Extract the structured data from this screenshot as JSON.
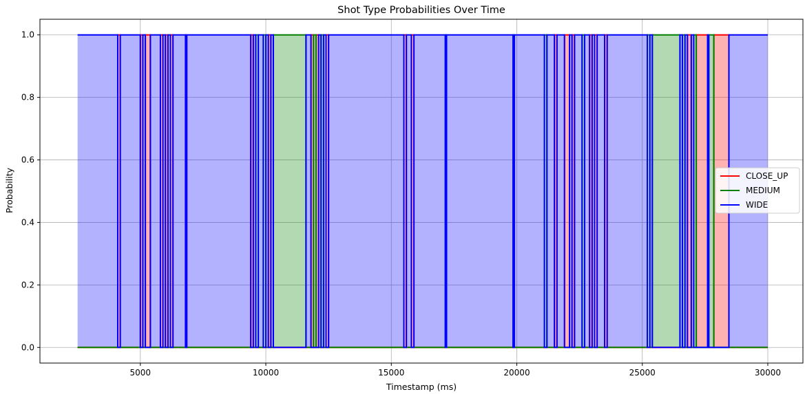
{
  "chart_data": {
    "type": "area",
    "title": "Shot Type Probabilities Over Time",
    "xlabel": "Timestamp (ms)",
    "ylabel": "Probability",
    "xlim": [
      1000,
      31400
    ],
    "ylim": [
      -0.05,
      1.05
    ],
    "xticks": [
      5000,
      10000,
      15000,
      20000,
      25000,
      30000
    ],
    "yticks": [
      0.0,
      0.2,
      0.4,
      0.6,
      0.8,
      1.0
    ],
    "xtick_labels": [
      "5000",
      "10000",
      "15000",
      "20000",
      "25000",
      "30000"
    ],
    "ytick_labels": [
      "0.0",
      "0.2",
      "0.4",
      "0.6",
      "0.8",
      "1.0"
    ],
    "grid": true,
    "legend_position": "center-right",
    "x_start": 2500,
    "x_end": 30000,
    "series": [
      {
        "name": "CLOSE_UP",
        "color": "#ff0000"
      },
      {
        "name": "MEDIUM",
        "color": "#008000"
      },
      {
        "name": "WIDE",
        "color": "#0000ff"
      }
    ],
    "segments": [
      {
        "start": 4100,
        "end": 4200,
        "class": "CLOSE_UP"
      },
      {
        "start": 5000,
        "end": 5100,
        "class": "CLOSE_UP"
      },
      {
        "start": 5200,
        "end": 5400,
        "class": "CLOSE_UP"
      },
      {
        "start": 5800,
        "end": 5900,
        "class": "CLOSE_UP"
      },
      {
        "start": 6000,
        "end": 6100,
        "class": "CLOSE_UP"
      },
      {
        "start": 6200,
        "end": 6300,
        "class": "CLOSE_UP"
      },
      {
        "start": 6800,
        "end": 6850,
        "class": "CLOSE_UP"
      },
      {
        "start": 9400,
        "end": 9500,
        "class": "CLOSE_UP"
      },
      {
        "start": 9600,
        "end": 9700,
        "class": "MEDIUM"
      },
      {
        "start": 9900,
        "end": 10000,
        "class": "MEDIUM"
      },
      {
        "start": 10100,
        "end": 10200,
        "class": "CLOSE_UP"
      },
      {
        "start": 10300,
        "end": 11600,
        "class": "MEDIUM"
      },
      {
        "start": 11800,
        "end": 11900,
        "class": "CLOSE_UP"
      },
      {
        "start": 11900,
        "end": 12000,
        "class": "MEDIUM"
      },
      {
        "start": 12000,
        "end": 12100,
        "class": "CLOSE_UP"
      },
      {
        "start": 12200,
        "end": 12300,
        "class": "MEDIUM"
      },
      {
        "start": 12400,
        "end": 12500,
        "class": "CLOSE_UP"
      },
      {
        "start": 15500,
        "end": 15600,
        "class": "CLOSE_UP"
      },
      {
        "start": 15800,
        "end": 15900,
        "class": "CLOSE_UP"
      },
      {
        "start": 17150,
        "end": 17200,
        "class": "MEDIUM"
      },
      {
        "start": 19850,
        "end": 19900,
        "class": "MEDIUM"
      },
      {
        "start": 21100,
        "end": 21200,
        "class": "MEDIUM"
      },
      {
        "start": 21500,
        "end": 21600,
        "class": "CLOSE_UP"
      },
      {
        "start": 21900,
        "end": 22100,
        "class": "CLOSE_UP"
      },
      {
        "start": 22200,
        "end": 22300,
        "class": "CLOSE_UP"
      },
      {
        "start": 22600,
        "end": 22700,
        "class": "MEDIUM"
      },
      {
        "start": 22900,
        "end": 23000,
        "class": "CLOSE_UP"
      },
      {
        "start": 23100,
        "end": 23200,
        "class": "CLOSE_UP"
      },
      {
        "start": 23500,
        "end": 23600,
        "class": "CLOSE_UP"
      },
      {
        "start": 25200,
        "end": 25300,
        "class": "MEDIUM"
      },
      {
        "start": 25400,
        "end": 26500,
        "class": "MEDIUM"
      },
      {
        "start": 26600,
        "end": 26700,
        "class": "MEDIUM"
      },
      {
        "start": 26800,
        "end": 26950,
        "class": "CLOSE_UP"
      },
      {
        "start": 27050,
        "end": 27150,
        "class": "MEDIUM"
      },
      {
        "start": 27150,
        "end": 27600,
        "class": "CLOSE_UP"
      },
      {
        "start": 27650,
        "end": 27850,
        "class": "MEDIUM"
      },
      {
        "start": 27850,
        "end": 28450,
        "class": "CLOSE_UP"
      }
    ]
  }
}
